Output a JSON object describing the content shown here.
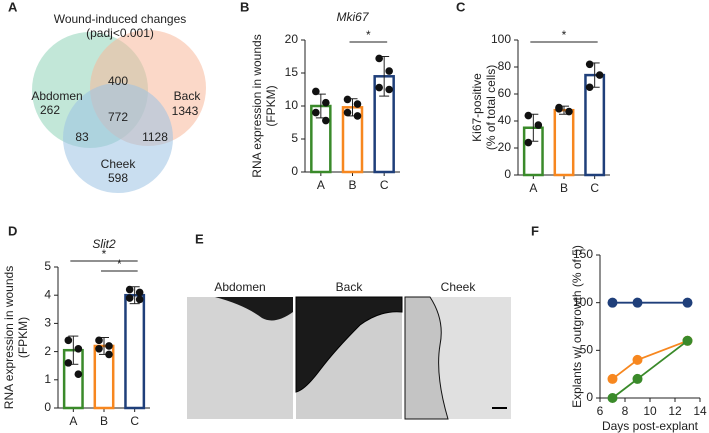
{
  "chart_data": [
    {
      "type": "venn",
      "panel": "A",
      "title": "Wound-induced changes",
      "subtitle": "(padj<0.001)",
      "sets": [
        {
          "name": "Abdomen",
          "only": 262,
          "color": "#8fd4b8"
        },
        {
          "name": "Back",
          "only": 1343,
          "color": "#f7b89a"
        },
        {
          "name": "Cheek",
          "only": 598,
          "color": "#9cc3e4"
        }
      ],
      "overlaps": {
        "abdomen_back": 400,
        "abdomen_cheek": 83,
        "back_cheek": 1128,
        "all": 772
      }
    },
    {
      "type": "bar",
      "panel": "B",
      "title": "Mki67",
      "ylabel": [
        "RNA expression in wounds",
        "(FPKM)"
      ],
      "categories": [
        "A",
        "B",
        "C"
      ],
      "values": [
        10,
        9.8,
        14.5
      ],
      "errors": [
        1.8,
        1.3,
        3
      ],
      "colors": [
        "#3a8a2a",
        "#f7871f",
        "#1f3f7a"
      ],
      "points": [
        [
          12.2,
          10.5,
          9,
          7.8
        ],
        [
          11,
          10.3,
          9,
          8.5
        ],
        [
          17.2,
          15.3,
          12.8,
          12.5
        ]
      ],
      "ylim": [
        0,
        20
      ],
      "yticks": [
        0,
        5,
        10,
        15,
        20
      ],
      "annotations": [
        {
          "text": "*",
          "between": [
            "B",
            "C"
          ]
        }
      ]
    },
    {
      "type": "bar",
      "panel": "C",
      "ylabel": [
        "Ki67-positive",
        "(% of total cells)"
      ],
      "categories": [
        "A",
        "B",
        "C"
      ],
      "values": [
        35,
        48,
        74
      ],
      "errors": [
        10,
        3,
        9
      ],
      "colors": [
        "#3a8a2a",
        "#f7871f",
        "#1f3f7a"
      ],
      "points": [
        [
          44,
          37,
          24
        ],
        [
          50,
          47,
          49
        ],
        [
          82,
          74,
          65
        ]
      ],
      "ylim": [
        0,
        100
      ],
      "yticks": [
        0,
        20,
        40,
        60,
        80,
        100
      ],
      "annotations": [
        {
          "text": "*",
          "between": [
            "A",
            "C"
          ]
        }
      ]
    },
    {
      "type": "bar",
      "panel": "D",
      "title": "Slit2",
      "ylabel": [
        "RNA expression in wounds",
        "(FPKM)"
      ],
      "categories": [
        "A",
        "B",
        "C"
      ],
      "values": [
        2.05,
        2.2,
        4.0
      ],
      "errors": [
        0.5,
        0.3,
        0.3
      ],
      "colors": [
        "#3a8a2a",
        "#f7871f",
        "#1f3f7a"
      ],
      "points": [
        [
          2.4,
          2.1,
          1.6,
          1.2
        ],
        [
          2.4,
          2.2,
          2.1,
          1.9
        ],
        [
          4.2,
          4.1,
          3.9,
          3.85
        ]
      ],
      "ylim": [
        0,
        5
      ],
      "yticks": [
        0,
        1,
        2,
        3,
        4,
        5
      ],
      "annotations": [
        {
          "text": "*",
          "between": [
            "A",
            "C"
          ]
        },
        {
          "text": "*",
          "between": [
            "B",
            "C"
          ]
        }
      ]
    },
    {
      "type": "line",
      "panel": "F",
      "xlabel": "Days post-explant",
      "ylabel": [
        "Explants w/ outgrowth (% of 5)"
      ],
      "x": [
        7,
        9,
        13
      ],
      "series": [
        {
          "color": "#1f3f7a",
          "values": [
            100,
            100,
            100
          ]
        },
        {
          "color": "#f7871f",
          "values": [
            20,
            40,
            60
          ]
        },
        {
          "color": "#3a8a2a",
          "values": [
            0,
            20,
            60
          ]
        }
      ],
      "xlim": [
        6,
        14
      ],
      "xticks": [
        6,
        8,
        10,
        12,
        14
      ],
      "ylim": [
        0,
        150
      ],
      "yticks": [
        0,
        50,
        100,
        150
      ]
    }
  ],
  "micrographs": {
    "panel": "E",
    "captions": [
      "Abdomen",
      "Back",
      "Cheek"
    ]
  }
}
